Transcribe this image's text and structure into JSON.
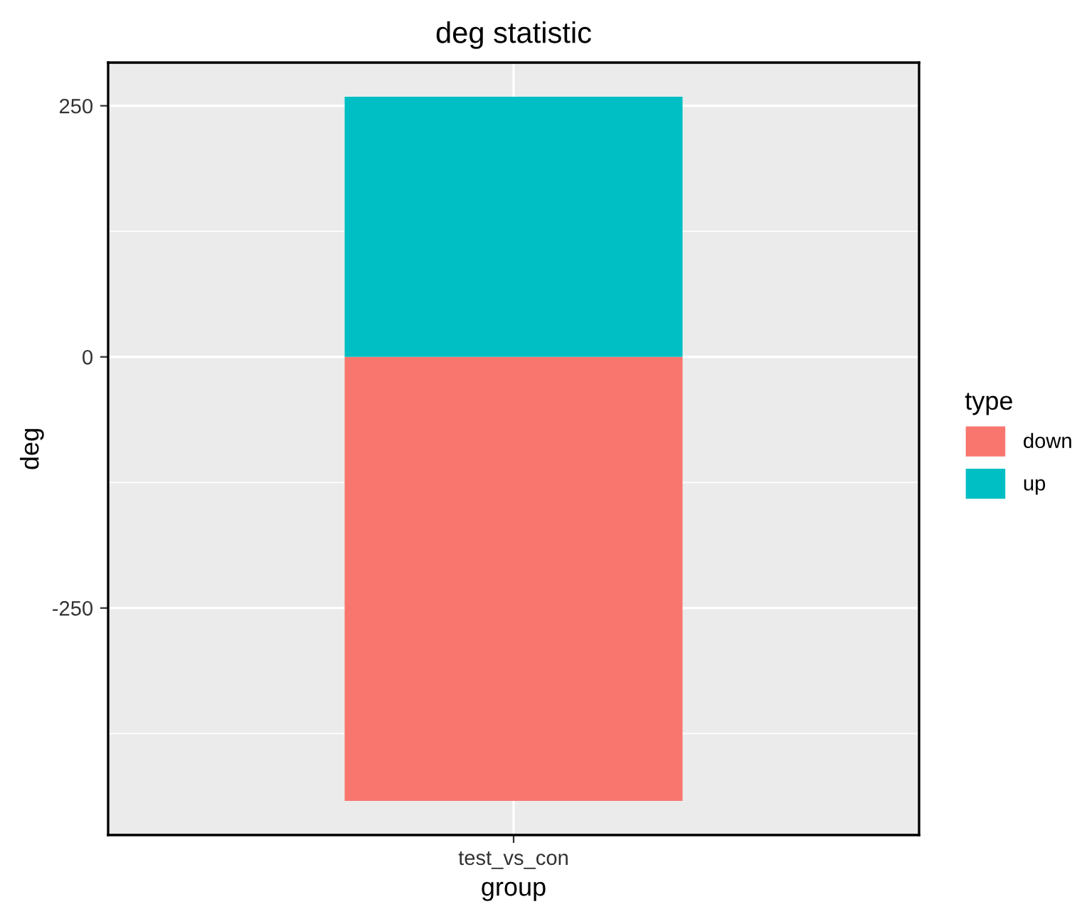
{
  "chart_data": {
    "type": "bar",
    "title": "deg statistic",
    "xlabel": "group",
    "ylabel": "deg",
    "legend_title": "type",
    "categories": [
      "test_vs_con"
    ],
    "series": [
      {
        "name": "down",
        "color": "#f8766d",
        "values": [
          -442
        ]
      },
      {
        "name": "up",
        "color": "#00bfc4",
        "values": [
          259
        ]
      }
    ],
    "stacked": true,
    "ylim": [
      -476,
      293
    ],
    "yticks": [
      -250,
      0,
      250
    ],
    "grid": true,
    "legend": "right"
  }
}
